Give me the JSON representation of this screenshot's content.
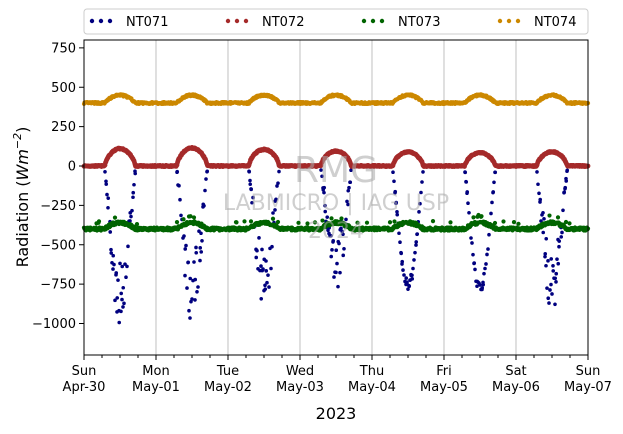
{
  "chart_data": {
    "type": "scatter",
    "title": "",
    "xlabel": "2023",
    "ylabel_main": "Radiation (",
    "ylabel_unit": "Wm",
    "ylabel_exp": "−2",
    "ylabel_close": ")",
    "x_range_days": [
      0,
      7
    ],
    "ylim": [
      -1200,
      800
    ],
    "y_ticks": [
      750,
      500,
      250,
      0,
      -250,
      -500,
      -750,
      -1000
    ],
    "y_tick_labels": [
      "750",
      "500",
      "250",
      "0",
      "−250",
      "−500",
      "−750",
      "−1000"
    ],
    "x_ticks": [
      {
        "day": "Sun",
        "date": "Apr-30"
      },
      {
        "day": "Mon",
        "date": "May-01"
      },
      {
        "day": "Tue",
        "date": "May-02"
      },
      {
        "day": "Wed",
        "date": "May-03"
      },
      {
        "day": "Thu",
        "date": "May-04"
      },
      {
        "day": "Fri",
        "date": "May-05"
      },
      {
        "day": "Sat",
        "date": "May-06"
      },
      {
        "day": "Sun",
        "date": "May-07"
      }
    ],
    "grid": "vertical",
    "legend_placement": "top, above plot",
    "watermark": {
      "line1": "RMG",
      "line2": "LABMICRO | IAG USP",
      "line3": "2024"
    },
    "daily_minimum_NT071": [
      -1000,
      -1010,
      -910,
      -810,
      -790,
      -810,
      -930
    ],
    "daily_peak_NT072": [
      110,
      115,
      105,
      95,
      90,
      85,
      90
    ],
    "series": [
      {
        "name": "NT071",
        "color": "#00007f",
        "description": "night ~0, daytime dips"
      },
      {
        "name": "NT072",
        "color": "#a52a2a",
        "description": "night ~0, daytime peaks ~100"
      },
      {
        "name": "NT073",
        "color": "#006400",
        "description": "~-400 baseline, slight daytime rise"
      },
      {
        "name": "NT074",
        "color": "#cc8800",
        "description": "~400 baseline, daytime ~450"
      }
    ]
  }
}
